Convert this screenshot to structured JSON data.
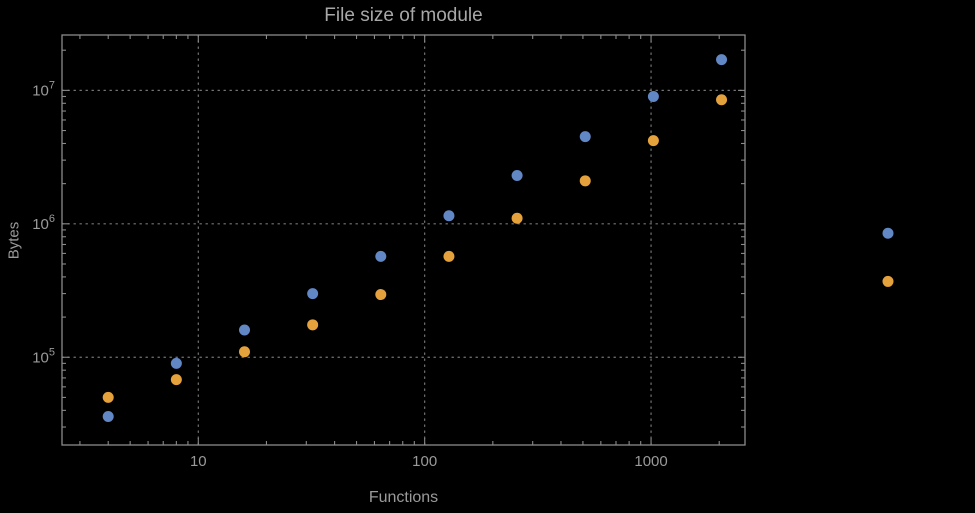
{
  "chart_data": {
    "type": "scatter",
    "title": "File size of module",
    "xlabel": "Functions",
    "ylabel": "Bytes",
    "x_scale": "log",
    "y_scale": "log",
    "xlim": [
      2.5,
      2600
    ],
    "ylim": [
      22000,
      26000000
    ],
    "grid": "dotted",
    "legend_position": "right-outside",
    "x_major_ticks": [
      {
        "value": 10,
        "label": "10"
      },
      {
        "value": 100,
        "label": "100"
      },
      {
        "value": 1000,
        "label": "1000"
      }
    ],
    "y_major_ticks": [
      {
        "value": 100000,
        "label": "10^5"
      },
      {
        "value": 1000000,
        "label": "10^6"
      },
      {
        "value": 10000000,
        "label": "10^7"
      }
    ],
    "series": [
      {
        "name": "blue",
        "color": "#6287c5",
        "points": [
          {
            "x": 4,
            "y": 36000
          },
          {
            "x": 8,
            "y": 90000
          },
          {
            "x": 16,
            "y": 160000
          },
          {
            "x": 32,
            "y": 300000
          },
          {
            "x": 64,
            "y": 570000
          },
          {
            "x": 128,
            "y": 1150000
          },
          {
            "x": 256,
            "y": 2300000
          },
          {
            "x": 512,
            "y": 4500000
          },
          {
            "x": 1024,
            "y": 9000000
          },
          {
            "x": 2048,
            "y": 17000000
          }
        ]
      },
      {
        "name": "orange",
        "color": "#e5a23c",
        "points": [
          {
            "x": 4,
            "y": 50000
          },
          {
            "x": 8,
            "y": 68000
          },
          {
            "x": 16,
            "y": 110000
          },
          {
            "x": 32,
            "y": 175000
          },
          {
            "x": 64,
            "y": 295000
          },
          {
            "x": 128,
            "y": 570000
          },
          {
            "x": 256,
            "y": 1100000
          },
          {
            "x": 512,
            "y": 2100000
          },
          {
            "x": 1024,
            "y": 4200000
          },
          {
            "x": 2048,
            "y": 8500000
          }
        ]
      }
    ],
    "outside_markers": [
      {
        "series": "blue",
        "color": "#6287c5",
        "y": 850000
      },
      {
        "series": "orange",
        "color": "#e5a23c",
        "y": 370000
      }
    ]
  },
  "style": {
    "background": "#000000",
    "frame_color": "#8a8a8a",
    "grid_color": "#757575",
    "tick_label_color": "#9a9a9a",
    "title_color": "#a8a8a8",
    "axis_label_color": "#9a9a9a",
    "point_radius": 5.5
  }
}
